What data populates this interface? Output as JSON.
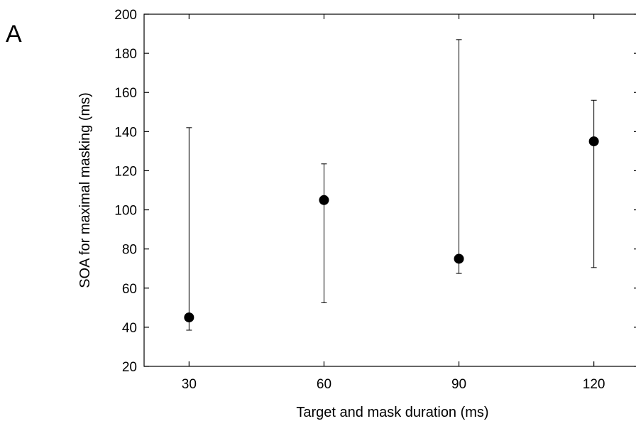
{
  "panel_label": "A",
  "chart_data": {
    "type": "scatter",
    "title": "",
    "xlabel": "Target and mask duration (ms)",
    "ylabel": "SOA for maximal masking (ms)",
    "x": [
      30,
      60,
      90,
      120
    ],
    "x_tick_labels": [
      "30",
      "60",
      "90",
      "120"
    ],
    "y_tick_labels": [
      "20",
      "40",
      "60",
      "80",
      "100",
      "120",
      "140",
      "160",
      "180",
      "200"
    ],
    "ylim": [
      20,
      200
    ],
    "series": [
      {
        "values": [
          45,
          105,
          75,
          135
        ],
        "error_low": [
          38.5,
          52.5,
          67.5,
          70.5
        ],
        "error_high": [
          142,
          123.5,
          187,
          156
        ]
      }
    ],
    "marker": "filled-circle",
    "marker_color": "#000000",
    "grid": false
  }
}
